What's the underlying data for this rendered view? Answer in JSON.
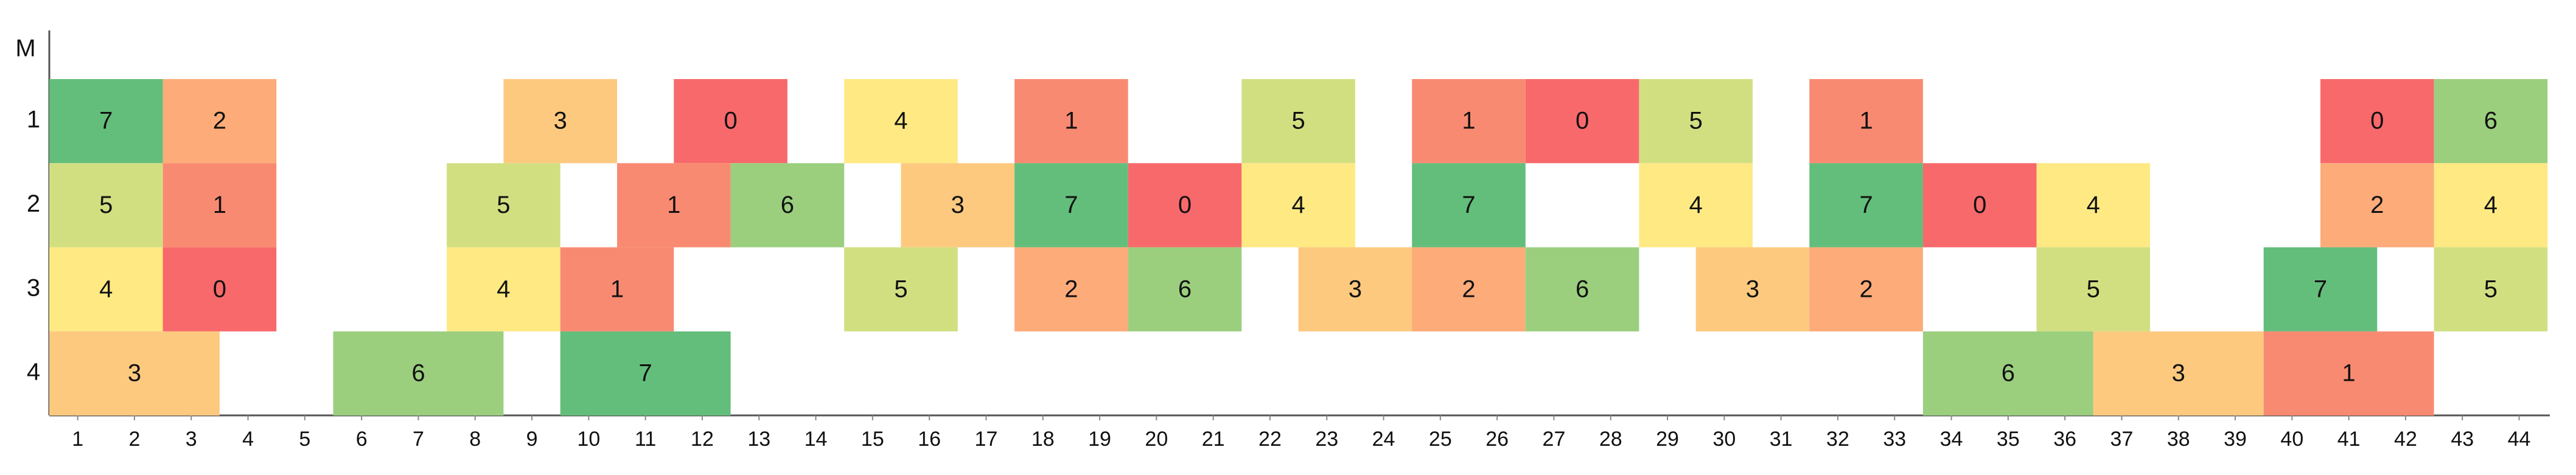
{
  "chart_data": {
    "type": "timeline",
    "y_label": "M",
    "colors": [
      "#f8696b",
      "#f98a72",
      "#fcab79",
      "#fdc97f",
      "#fee983",
      "#d2df81",
      "#9bcf7e",
      "#63be7b"
    ],
    "xticks": [
      1,
      2,
      3,
      4,
      5,
      6,
      7,
      8,
      9,
      10,
      11,
      12,
      13,
      14,
      15,
      16,
      17,
      18,
      19,
      20,
      21,
      22,
      23,
      24,
      25,
      26,
      27,
      28,
      29,
      30,
      31,
      32,
      33,
      34,
      35,
      36,
      37,
      38,
      39,
      40,
      41,
      42,
      43,
      44
    ],
    "rows": [
      {
        "label": "1",
        "cells": [
          {
            "x": [
              1,
              2
            ],
            "value": 7
          },
          {
            "x": [
              3,
              4
            ],
            "value": 2
          },
          {
            "x": [
              9,
              10
            ],
            "value": 3
          },
          {
            "x": [
              12,
              13
            ],
            "value": 0
          },
          {
            "x": [
              15,
              16
            ],
            "value": 4
          },
          {
            "x": [
              18,
              19
            ],
            "value": 1
          },
          {
            "x": [
              22,
              23
            ],
            "value": 5
          },
          {
            "x": [
              25,
              26
            ],
            "value": 1
          },
          {
            "x": [
              27,
              28
            ],
            "value": 0
          },
          {
            "x": [
              29,
              30
            ],
            "value": 5
          },
          {
            "x": [
              32,
              33
            ],
            "value": 1
          },
          {
            "x": [
              41,
              42
            ],
            "value": 0
          },
          {
            "x": [
              43,
              44
            ],
            "value": 6
          }
        ]
      },
      {
        "label": "2",
        "cells": [
          {
            "x": [
              1,
              2
            ],
            "value": 5
          },
          {
            "x": [
              3,
              4
            ],
            "value": 1
          },
          {
            "x": [
              8,
              9
            ],
            "value": 5
          },
          {
            "x": [
              11,
              12
            ],
            "value": 1
          },
          {
            "x": [
              13,
              14
            ],
            "value": 6
          },
          {
            "x": [
              16,
              17
            ],
            "value": 3
          },
          {
            "x": [
              18,
              19
            ],
            "value": 7
          },
          {
            "x": [
              20,
              21
            ],
            "value": 0
          },
          {
            "x": [
              22,
              23
            ],
            "value": 4
          },
          {
            "x": [
              25,
              26
            ],
            "value": 7
          },
          {
            "x": [
              29,
              30
            ],
            "value": 4
          },
          {
            "x": [
              32,
              33
            ],
            "value": 7
          },
          {
            "x": [
              34,
              35
            ],
            "value": 0
          },
          {
            "x": [
              36,
              37
            ],
            "value": 4
          },
          {
            "x": [
              41,
              42
            ],
            "value": 2
          },
          {
            "x": [
              43,
              44
            ],
            "value": 4
          }
        ]
      },
      {
        "label": "3",
        "cells": [
          {
            "x": [
              1,
              2
            ],
            "value": 4
          },
          {
            "x": [
              3,
              4
            ],
            "value": 0
          },
          {
            "x": [
              8,
              9
            ],
            "value": 4
          },
          {
            "x": [
              10,
              11
            ],
            "value": 1
          },
          {
            "x": [
              15,
              16
            ],
            "value": 5
          },
          {
            "x": [
              18,
              19
            ],
            "value": 2
          },
          {
            "x": [
              20,
              21
            ],
            "value": 6
          },
          {
            "x": [
              23,
              24
            ],
            "value": 3
          },
          {
            "x": [
              25,
              26
            ],
            "value": 2
          },
          {
            "x": [
              27,
              28
            ],
            "value": 6
          },
          {
            "x": [
              30,
              31
            ],
            "value": 3
          },
          {
            "x": [
              32,
              33
            ],
            "value": 2
          },
          {
            "x": [
              36,
              37
            ],
            "value": 5
          },
          {
            "x": [
              40,
              41
            ],
            "value": 7
          },
          {
            "x": [
              43,
              44
            ],
            "value": 5
          }
        ]
      },
      {
        "label": "4",
        "cells": [
          {
            "x": [
              1,
              3
            ],
            "value": 3
          },
          {
            "x": [
              6,
              8
            ],
            "value": 6
          },
          {
            "x": [
              10,
              12
            ],
            "value": 7
          },
          {
            "x": [
              34,
              36
            ],
            "value": 6
          },
          {
            "x": [
              37,
              39
            ],
            "value": 3
          },
          {
            "x": [
              40,
              42
            ],
            "value": 1
          }
        ]
      }
    ]
  }
}
